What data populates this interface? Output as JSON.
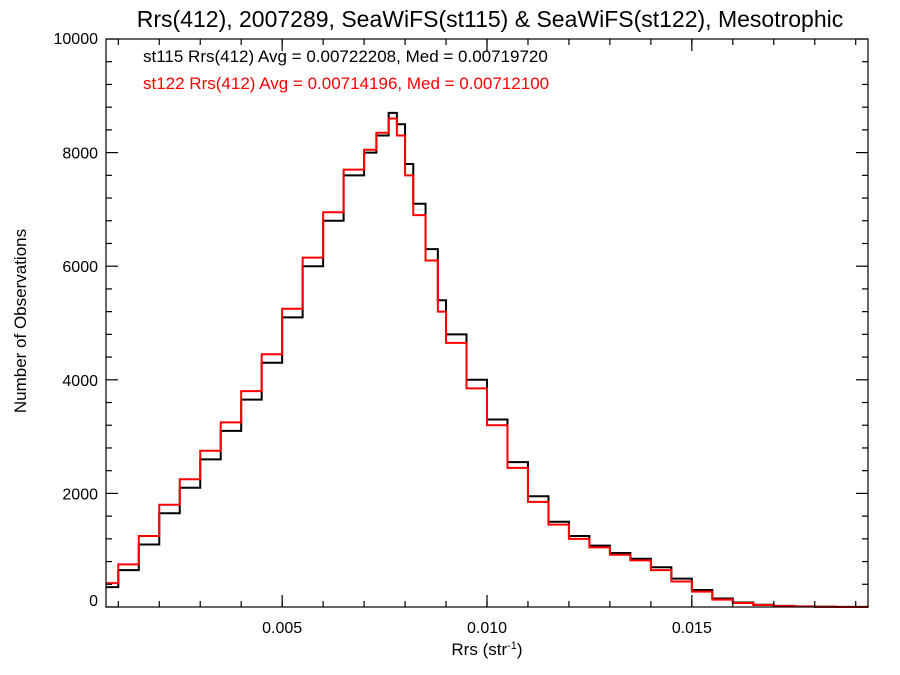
{
  "chart_data": {
    "type": "line",
    "step": true,
    "title": "Rrs(412), 2007289, SeaWiFS(st115) & SeaWiFS(st122), Mesotrophic",
    "xlabel": "Rrs (str",
    "xlabel_sup": "-1",
    "xlabel_end": ")",
    "ylabel": "Number of Observations",
    "xlim": [
      0.0007,
      0.0193
    ],
    "ylim": [
      0,
      10000
    ],
    "x_ticks": [
      {
        "value": 0.005,
        "label": "0.005"
      },
      {
        "value": 0.01,
        "label": "0.010"
      },
      {
        "value": 0.015,
        "label": "0.015"
      }
    ],
    "y_ticks": [
      {
        "value": 0,
        "label": "0"
      },
      {
        "value": 2000,
        "label": "2000"
      },
      {
        "value": 4000,
        "label": "4000"
      },
      {
        "value": 6000,
        "label": "6000"
      },
      {
        "value": 8000,
        "label": "8000"
      },
      {
        "value": 10000,
        "label": "10000"
      }
    ],
    "grid": false,
    "annotations": [
      {
        "text": "st115 Rrs(412) Avg = 0.00722208, Med = 0.00719720",
        "color": "#000000"
      },
      {
        "text": "st122 Rrs(412) Avg = 0.00714196, Med = 0.00712100",
        "color": "#ff0000"
      }
    ],
    "series": [
      {
        "color": "#000000",
        "x": [
          0.0007,
          0.001,
          0.0015,
          0.002,
          0.0025,
          0.003,
          0.0035,
          0.004,
          0.0045,
          0.005,
          0.0055,
          0.006,
          0.0065,
          0.007,
          0.0073,
          0.0076,
          0.0078,
          0.008,
          0.0082,
          0.0085,
          0.0088,
          0.009,
          0.0095,
          0.01,
          0.0105,
          0.011,
          0.0115,
          0.012,
          0.0125,
          0.013,
          0.0135,
          0.014,
          0.0145,
          0.015,
          0.0155,
          0.016,
          0.0165,
          0.017,
          0.0175,
          0.018,
          0.0185,
          0.0193
        ],
        "y": [
          350,
          650,
          1100,
          1650,
          2100,
          2600,
          3100,
          3650,
          4300,
          5100,
          6000,
          6800,
          7600,
          8000,
          8300,
          8700,
          8500,
          7800,
          7100,
          6300,
          5400,
          4800,
          4000,
          3300,
          2550,
          1950,
          1500,
          1250,
          1080,
          950,
          850,
          700,
          500,
          300,
          150,
          80,
          40,
          20,
          10,
          5,
          2,
          0
        ]
      },
      {
        "color": "#ff0000",
        "x": [
          0.0007,
          0.001,
          0.0015,
          0.002,
          0.0025,
          0.003,
          0.0035,
          0.004,
          0.0045,
          0.005,
          0.0055,
          0.006,
          0.0065,
          0.007,
          0.0073,
          0.0076,
          0.0078,
          0.008,
          0.0082,
          0.0085,
          0.0088,
          0.009,
          0.0095,
          0.01,
          0.0105,
          0.011,
          0.0115,
          0.012,
          0.0125,
          0.013,
          0.0135,
          0.014,
          0.0145,
          0.015,
          0.0155,
          0.016,
          0.0165,
          0.017,
          0.0175,
          0.018,
          0.0185,
          0.0193
        ],
        "y": [
          420,
          750,
          1250,
          1800,
          2250,
          2750,
          3250,
          3800,
          4450,
          5250,
          6150,
          6950,
          7700,
          8050,
          8350,
          8600,
          8300,
          7600,
          6900,
          6100,
          5200,
          4650,
          3850,
          3200,
          2450,
          1850,
          1450,
          1200,
          1050,
          920,
          820,
          650,
          450,
          270,
          130,
          70,
          35,
          15,
          8,
          4,
          1,
          0
        ]
      }
    ]
  }
}
